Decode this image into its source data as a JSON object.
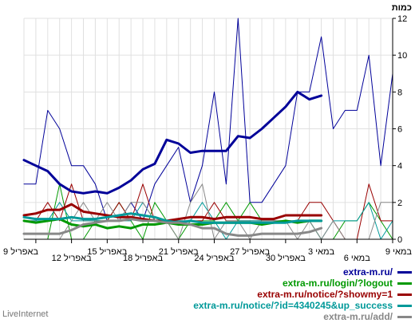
{
  "chart_data": {
    "type": "line",
    "ylabel": "כמות",
    "ylim": [
      0,
      12
    ],
    "yticks": [
      0,
      2,
      4,
      6,
      8,
      10,
      12
    ],
    "xtick_labels": [
      "9 במאי",
      "6 במאי",
      "3 במאי",
      "30 באפריל",
      "27 באפריל",
      "24 באפריל",
      "21 באפריל",
      "18 באפריל",
      "15 באפריל",
      "12 באפריל",
      "9 באפריל"
    ],
    "grid": true,
    "legend_position": "bottom-right",
    "series": [
      {
        "name": "extra-m.ru/",
        "color": "#000099",
        "weight": 1,
        "values": [
          3,
          3,
          7,
          6,
          4,
          4,
          3,
          1,
          1,
          2,
          1,
          3,
          4,
          5,
          2,
          4,
          8,
          3,
          12,
          2,
          2,
          3,
          4,
          8,
          8,
          11,
          6,
          7,
          7,
          10,
          4,
          9
        ]
      },
      {
        "name": "extra-m.ru/",
        "color": "#000099",
        "weight": 3,
        "values": [
          4.3,
          4.0,
          3.7,
          3.0,
          2.6,
          2.5,
          2.6,
          2.5,
          2.8,
          3.2,
          3.8,
          4.1,
          5.4,
          5.2,
          4.7,
          4.8,
          4.8,
          4.8,
          5.6,
          5.5,
          6.0,
          6.6,
          7.2,
          8.0,
          7.6,
          7.8
        ]
      },
      {
        "name": "extra-m.ru/login/?logout",
        "color": "#009900",
        "weight": 1,
        "values": [
          0,
          0,
          0,
          3,
          0,
          0,
          1,
          1,
          2,
          1,
          0,
          2,
          1,
          0,
          1,
          1,
          1,
          2,
          1,
          2,
          1,
          1,
          1,
          1,
          1,
          0,
          0,
          1,
          1,
          2,
          1,
          0
        ]
      },
      {
        "name": "extra-m.ru/login/?logout",
        "color": "#009900",
        "weight": 3,
        "values": [
          1.0,
          0.9,
          1.0,
          1.1,
          0.8,
          0.7,
          0.8,
          0.6,
          0.7,
          0.6,
          0.8,
          0.8,
          0.9,
          0.8,
          0.8,
          0.8,
          0.9,
          0.9,
          0.9,
          0.9,
          0.8,
          0.9,
          1.0,
          0.9,
          1.0,
          1.0
        ]
      },
      {
        "name": "extra-m.ru/notice/?showmy=1",
        "color": "#990000",
        "weight": 1,
        "values": [
          1,
          1,
          2,
          1,
          3,
          1,
          1,
          1,
          2,
          1,
          3,
          1,
          1,
          1,
          1,
          1,
          2,
          1,
          1,
          1,
          1,
          1,
          1,
          1,
          2,
          2,
          1,
          0,
          0,
          3,
          1,
          1
        ]
      },
      {
        "name": "extra-m.ru/notice/?showmy=1",
        "color": "#990000",
        "weight": 3,
        "values": [
          1.3,
          1.4,
          1.6,
          1.6,
          1.9,
          1.5,
          1.4,
          1.3,
          1.2,
          1.2,
          1.1,
          1.0,
          1.0,
          1.1,
          1.2,
          1.2,
          1.1,
          1.2,
          1.2,
          1.2,
          1.1,
          1.1,
          1.3,
          1.3,
          1.3,
          1.3
        ]
      },
      {
        "name": "extra-m.ru/notice/?id=4340245&up_success",
        "color": "#009999",
        "weight": 1,
        "values": [
          1,
          1,
          1,
          2,
          1,
          1,
          1,
          1,
          1,
          1,
          2,
          1,
          1,
          1,
          1,
          2,
          1,
          0,
          1,
          1,
          1,
          1,
          1,
          1,
          1,
          0,
          1,
          1,
          1,
          2,
          0,
          1
        ]
      },
      {
        "name": "extra-m.ru/notice/?id=4340245&up_success",
        "color": "#009999",
        "weight": 3,
        "values": [
          1.2,
          1.1,
          1.1,
          1.1,
          1.2,
          1.1,
          1.1,
          1.2,
          1.3,
          1.4,
          1.3,
          1.2,
          1.0,
          0.9,
          1.0,
          0.9,
          0.9,
          0.9,
          0.9,
          0.9,
          0.9,
          0.9,
          0.9,
          1.0,
          1.0,
          1.0
        ]
      },
      {
        "name": "extra-m.ru/add/",
        "color": "#888888",
        "weight": 1,
        "values": [
          0,
          0,
          0,
          0,
          1,
          2,
          1,
          2,
          1,
          2,
          2,
          1,
          1,
          0,
          2,
          3,
          0,
          1,
          1,
          0,
          1,
          1,
          1,
          0,
          1,
          0,
          1,
          0,
          0,
          0,
          2,
          2
        ]
      },
      {
        "name": "extra-m.ru/add/",
        "color": "#888888",
        "weight": 3,
        "values": [
          0.3,
          0.3,
          0.3,
          0.3,
          0.5,
          0.8,
          0.9,
          1.0,
          1.0,
          1.1,
          1.0,
          1.0,
          0.9,
          0.9,
          0.8,
          0.6,
          0.6,
          0.3,
          0.2,
          0.2,
          0.3,
          0.3,
          0.3,
          0.3,
          0.4,
          0.6
        ]
      }
    ]
  },
  "legend": [
    {
      "label": "extra-m.ru/",
      "color": "#000099"
    },
    {
      "label": "extra-m.ru/login/?logout",
      "color": "#009900"
    },
    {
      "label": "extra-m.ru/notice/?showmy=1",
      "color": "#990000"
    },
    {
      "label": "extra-m.ru/notice/?id=4340245&up_success",
      "color": "#009999"
    },
    {
      "label": "extra-m.ru/add/",
      "color": "#888888"
    }
  ],
  "brand": "LiveInternet"
}
